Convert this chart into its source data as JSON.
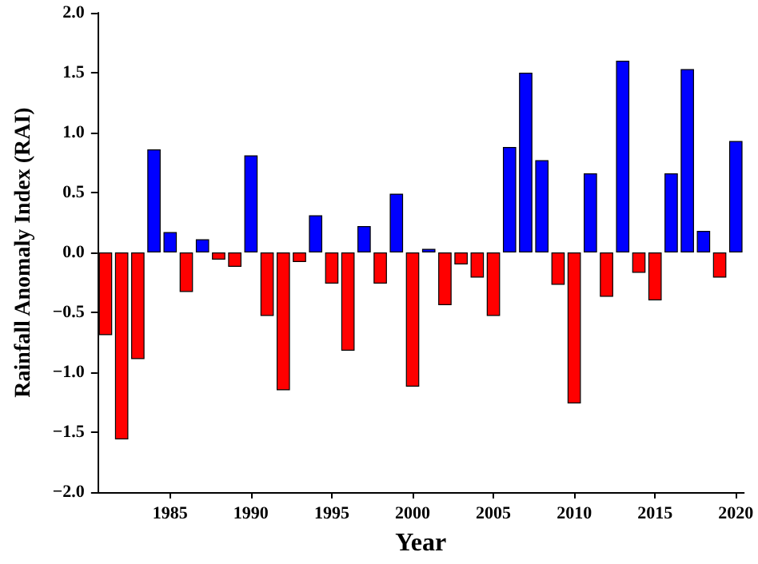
{
  "chart_data": {
    "type": "bar",
    "xlabel": "Year",
    "ylabel": "Rainfall Anomaly Index (RAI)",
    "x": [
      1981,
      1982,
      1983,
      1984,
      1985,
      1986,
      1987,
      1988,
      1989,
      1990,
      1991,
      1992,
      1993,
      1994,
      1995,
      1996,
      1997,
      1998,
      1999,
      2000,
      2001,
      2002,
      2003,
      2004,
      2005,
      2006,
      2007,
      2008,
      2009,
      2010,
      2011,
      2012,
      2013,
      2014,
      2015,
      2016,
      2017,
      2018,
      2019,
      2020
    ],
    "values": [
      -0.69,
      -1.56,
      -0.89,
      0.86,
      0.17,
      -0.33,
      0.11,
      -0.06,
      -0.12,
      0.81,
      -0.53,
      -1.15,
      -0.08,
      0.31,
      -0.26,
      -0.82,
      0.22,
      -0.26,
      0.49,
      -1.12,
      0.03,
      -0.44,
      -0.1,
      -0.21,
      -0.53,
      0.88,
      1.5,
      0.77,
      -0.27,
      -1.26,
      0.66,
      -0.37,
      1.6,
      -0.17,
      -0.4,
      0.66,
      1.53,
      0.18,
      -0.21,
      0.93
    ],
    "colors": [
      "#ff0000",
      "#ff0000",
      "#ff0000",
      "#0000ff",
      "#0000ff",
      "#ff0000",
      "#0000ff",
      "#ff0000",
      "#ff0000",
      "#0000ff",
      "#ff0000",
      "#ff0000",
      "#ff0000",
      "#0000ff",
      "#ff0000",
      "#ff0000",
      "#0000ff",
      "#ff0000",
      "#0000ff",
      "#ff0000",
      "#0000ff",
      "#ff0000",
      "#ff0000",
      "#ff0000",
      "#ff0000",
      "#0000ff",
      "#0000ff",
      "#0000ff",
      "#ff0000",
      "#ff0000",
      "#0000ff",
      "#ff0000",
      "#0000ff",
      "#ff0000",
      "#ff0000",
      "#0000ff",
      "#0000ff",
      "#0000ff",
      "#ff0000",
      "#0000ff"
    ],
    "xlim": [
      1980.5,
      2020.5
    ],
    "xticks": [
      1985,
      1990,
      1995,
      2000,
      2005,
      2010,
      2015,
      2020
    ],
    "ylim": [
      -2,
      2
    ],
    "yticks": [
      {
        "value": -2,
        "label": "−2.0"
      },
      {
        "value": -1.5,
        "label": "−1.5"
      },
      {
        "value": -1,
        "label": "−1.0"
      },
      {
        "value": -0.5,
        "label": "−0.5"
      },
      {
        "value": 0,
        "label": "0.0"
      },
      {
        "value": 0.5,
        "label": "0.5"
      },
      {
        "value": 1,
        "label": "1.0"
      },
      {
        "value": 1.5,
        "label": "1.5"
      },
      {
        "value": 2,
        "label": "2.0"
      }
    ]
  }
}
